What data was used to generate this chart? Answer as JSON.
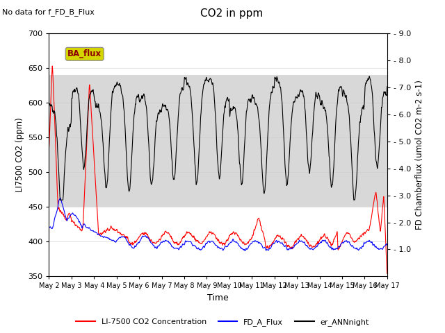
{
  "title": "CO2 in ppm",
  "title_note": "No data for f_FD_B_Flux",
  "ylabel_left": "LI7500 CO2 (ppm)",
  "ylabel_right": "FD Chamberflux (umol CO2 m-2 s-1)",
  "xlabel": "Time",
  "ylim_left": [
    350,
    700
  ],
  "ylim_right": [
    0.0,
    9.0
  ],
  "yticks_left": [
    350,
    400,
    450,
    500,
    550,
    600,
    650,
    700
  ],
  "yticks_right": [
    1.0,
    2.0,
    3.0,
    4.0,
    5.0,
    6.0,
    7.0,
    8.0,
    9.0
  ],
  "xtick_labels": [
    "May 2",
    "May 3",
    "May 4",
    "May 5",
    "May 6",
    "May 7",
    "May 8",
    "May 9",
    "May 10",
    "May 11",
    "May 12",
    "May 13",
    "May 14",
    "May 15",
    "May 16",
    "May 17"
  ],
  "legend_labels": [
    "LI-7500 CO2 Concentration",
    "FD_A_Flux",
    "er_ANNnight"
  ],
  "ba_flux_box_color": "#d4d400",
  "ba_flux_text_color": "#8b0000",
  "hspan_lo": 450,
  "hspan_hi": 640,
  "hspan_color": "#d8d8d8",
  "background_color": "white"
}
